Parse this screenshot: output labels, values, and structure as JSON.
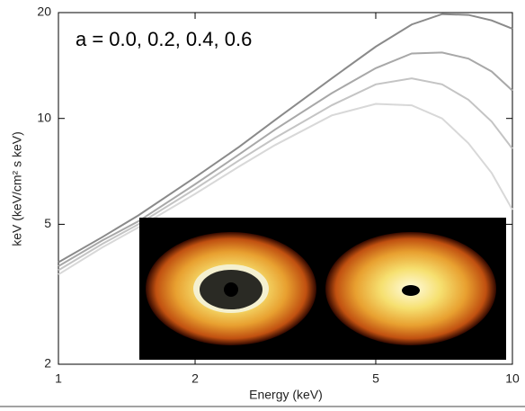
{
  "chart_data": {
    "type": "line",
    "annotation": "a = 0.0, 0.2, 0.4, 0.6",
    "xlabel": "Energy (keV)",
    "ylabel": "keV (keV/cm² s keV)",
    "x": [
      1,
      1.25,
      1.5,
      2,
      2.5,
      3,
      4,
      5,
      6,
      7,
      8,
      9,
      10
    ],
    "series": [
      {
        "color": "#8a8a8a",
        "values": [
          3.9,
          4.6,
          5.3,
          6.8,
          8.3,
          9.9,
          13,
          16,
          18.5,
          19.8,
          19.7,
          19,
          18
        ]
      },
      {
        "color": "#a8a8a8",
        "values": [
          3.8,
          4.5,
          5.1,
          6.5,
          7.9,
          9.3,
          11.8,
          13.9,
          15.3,
          15.4,
          14.8,
          13.6,
          12
        ]
      },
      {
        "color": "#c4c4c4",
        "values": [
          3.7,
          4.4,
          5.0,
          6.3,
          7.6,
          8.8,
          10.9,
          12.5,
          13.0,
          12.5,
          11.3,
          9.8,
          8.2
        ]
      },
      {
        "color": "#d8d8d8",
        "values": [
          3.6,
          4.3,
          4.9,
          6.1,
          7.3,
          8.4,
          10.2,
          11.0,
          10.9,
          10.0,
          8.5,
          7.0,
          5.5
        ]
      }
    ],
    "xscale": "log",
    "yscale": "log",
    "xlim": [
      1,
      10
    ],
    "ylim": [
      2,
      20
    ],
    "xticks": [
      1,
      2,
      5,
      10
    ],
    "yticks": [
      2,
      5,
      10,
      20
    ],
    "grid": false
  }
}
